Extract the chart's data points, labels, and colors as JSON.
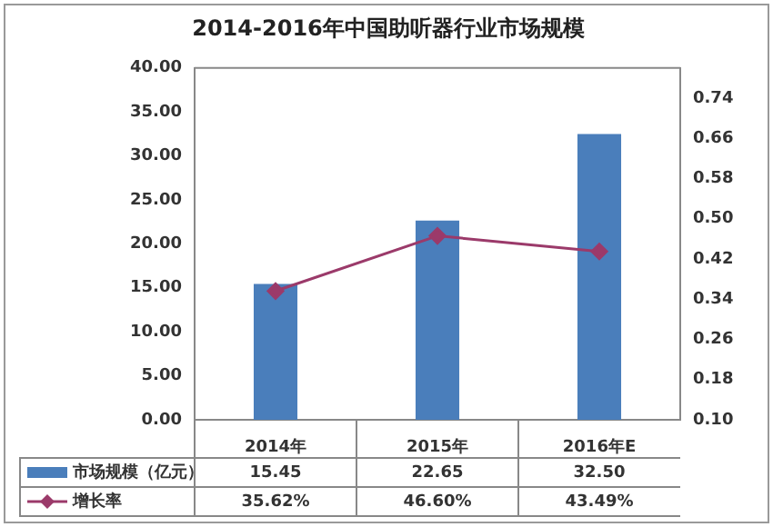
{
  "chart_data": {
    "type": "bar",
    "title": "2014-2016年中国助听器行业市场规模",
    "categories": [
      "2014年",
      "2015年",
      "2016年E"
    ],
    "series": [
      {
        "name": "市场规模（亿元）",
        "color": "#4a7ebb",
        "values": [
          15.45,
          22.65,
          32.5
        ],
        "value_labels": [
          "15.45",
          "22.65",
          "32.50"
        ]
      },
      {
        "name": "增长率",
        "type": "line",
        "axis": "y2",
        "color": "#9b3a6a",
        "values": [
          0.3562,
          0.466,
          0.4349
        ],
        "value_labels": [
          "35.62%",
          "46.60%",
          "43.49%"
        ]
      }
    ],
    "ylim": [
      0,
      40
    ],
    "yticks": [
      {
        "value": 0,
        "label": "0.00"
      },
      {
        "value": 5,
        "label": "5.00"
      },
      {
        "value": 10,
        "label": "10.00"
      },
      {
        "value": 15,
        "label": "15.00"
      },
      {
        "value": 20,
        "label": "20.00"
      },
      {
        "value": 25,
        "label": "25.00"
      },
      {
        "value": 30,
        "label": "30.00"
      },
      {
        "value": 35,
        "label": "35.00"
      },
      {
        "value": 40,
        "label": "40.00"
      }
    ],
    "y2lim": [
      0.1,
      0.8
    ],
    "y2ticks": [
      {
        "value": 0.1,
        "label": "0.10"
      },
      {
        "value": 0.18,
        "label": "0.18"
      },
      {
        "value": 0.26,
        "label": "0.26"
      },
      {
        "value": 0.34,
        "label": "0.34"
      },
      {
        "value": 0.42,
        "label": "0.42"
      },
      {
        "value": 0.5,
        "label": "0.50"
      },
      {
        "value": 0.58,
        "label": "0.58"
      },
      {
        "value": 0.66,
        "label": "0.66"
      },
      {
        "value": 0.74,
        "label": "0.74"
      }
    ],
    "grid": false,
    "legend": "bottom",
    "marker": "diamond",
    "line_style": "solid"
  }
}
